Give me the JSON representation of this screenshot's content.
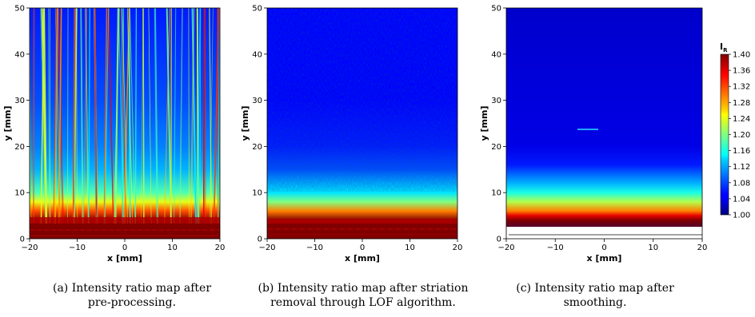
{
  "chart_data": [
    {
      "type": "heatmap",
      "panel": "a",
      "xlabel": "x [mm]",
      "ylabel": "y [mm]",
      "xlim": [
        -20,
        20
      ],
      "ylim": [
        0,
        50
      ],
      "xticks": [
        -20,
        -10,
        0,
        10,
        20
      ],
      "yticks": [
        0,
        10,
        20,
        30,
        40,
        50
      ],
      "caption": [
        "(a) Intensity ratio map after",
        "pre-processing."
      ],
      "description_values": {
        "y": [
          0,
          2,
          4,
          6,
          8,
          10,
          15,
          20,
          30,
          40,
          50
        ],
        "IR": [
          1.4,
          1.4,
          1.4,
          1.32,
          1.24,
          1.18,
          1.12,
          1.1,
          1.08,
          1.07,
          1.06
        ]
      }
    },
    {
      "type": "heatmap",
      "panel": "b",
      "xlabel": "x [mm]",
      "ylabel": "y [mm]",
      "xlim": [
        -20,
        20
      ],
      "ylim": [
        0,
        50
      ],
      "xticks": [
        -20,
        -10,
        0,
        10,
        20
      ],
      "yticks": [
        0,
        10,
        20,
        30,
        40,
        50
      ],
      "caption": [
        "(b) Intensity ratio map after striation",
        "removal through LOF algorithm."
      ],
      "description_values": {
        "y": [
          0,
          2,
          4,
          6,
          8,
          10,
          15,
          20,
          30,
          40,
          50
        ],
        "IR": [
          1.4,
          1.4,
          1.4,
          1.3,
          1.2,
          1.14,
          1.08,
          1.06,
          1.05,
          1.05,
          1.05
        ]
      }
    },
    {
      "type": "heatmap",
      "panel": "c",
      "xlabel": "x [mm]",
      "ylabel": "y [mm]",
      "xlim": [
        -20,
        20
      ],
      "ylim": [
        0,
        50
      ],
      "xticks": [
        -20,
        -10,
        0,
        10,
        20
      ],
      "yticks": [
        0,
        10,
        20,
        30,
        40,
        50
      ],
      "caption": [
        "(c) Intensity ratio map after",
        "smoothing."
      ],
      "description_values": {
        "y": [
          0,
          4,
          5,
          6,
          8,
          10,
          12,
          14,
          16,
          20,
          50
        ],
        "IR": [
          1.0,
          1.4,
          1.36,
          1.3,
          1.22,
          1.16,
          1.12,
          1.09,
          1.06,
          1.04,
          1.03
        ]
      }
    }
  ],
  "colorbar": {
    "label": "I",
    "label_sub": "R",
    "ticks": [
      "1.40",
      "1.36",
      "1.32",
      "1.28",
      "1.24",
      "1.20",
      "1.16",
      "1.12",
      "1.08",
      "1.04",
      "1.00"
    ],
    "min": 1.0,
    "max": 1.4,
    "colormap": "jet"
  }
}
